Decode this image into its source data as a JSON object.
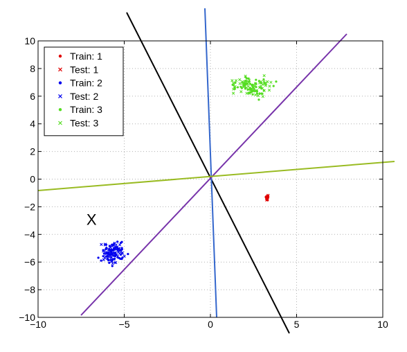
{
  "chart_data": {
    "type": "scatter",
    "title": "",
    "xlabel": "",
    "ylabel": "",
    "xlim": [
      -10,
      10
    ],
    "ylim": [
      -10,
      10
    ],
    "xticks": [
      -10,
      -5,
      0,
      5,
      10
    ],
    "yticks": [
      -10,
      -8,
      -6,
      -4,
      -2,
      0,
      2,
      4,
      6,
      8,
      10
    ],
    "xtick_labels": [
      "−10",
      "−5",
      "0",
      "5",
      "10"
    ],
    "ytick_labels": [
      "−10",
      "−8",
      "−6",
      "−4",
      "−2",
      "0",
      "2",
      "4",
      "6",
      "8",
      "10"
    ],
    "grid": true,
    "legend_position": "top-left",
    "legend": [
      {
        "label": "Train: 1",
        "marker": "dot",
        "color": "#e00000"
      },
      {
        "label": "Test: 1",
        "marker": "x",
        "color": "#e00000"
      },
      {
        "label": "Train: 2",
        "marker": "dot",
        "color": "#0000ee"
      },
      {
        "label": "Test: 2",
        "marker": "x",
        "color": "#0000ee"
      },
      {
        "label": "Train: 3",
        "marker": "dot",
        "color": "#55dd22"
      },
      {
        "label": "Test: 3",
        "marker": "x",
        "color": "#55dd22"
      }
    ],
    "clusters": [
      {
        "name": "Train: 1 / Test: 1",
        "color": "#e00000",
        "center": [
          3.3,
          -1.35
        ],
        "spread": [
          0.05,
          0.15
        ],
        "count": 30
      },
      {
        "name": "Train: 2 / Test: 2",
        "color": "#0000ee",
        "center": [
          -5.6,
          -5.3
        ],
        "spread": [
          0.55,
          0.55
        ],
        "count": 120
      },
      {
        "name": "Train: 3 / Test: 3",
        "color": "#55dd22",
        "center": [
          2.5,
          6.7
        ],
        "spread": [
          1.05,
          0.55
        ],
        "count": 110
      }
    ],
    "lines": [
      {
        "name": "black",
        "color": "#000000",
        "slope": -2.02
      },
      {
        "name": "blue",
        "color": "#3366cc",
        "slope": -31.0
      },
      {
        "name": "purple",
        "color": "#7733aa",
        "slope": 1.33
      },
      {
        "name": "olive",
        "color": "#99bb22",
        "slope": 0.12
      }
    ],
    "annotations": [
      {
        "text": "X",
        "x": -6.9,
        "y": -2.9
      }
    ]
  }
}
